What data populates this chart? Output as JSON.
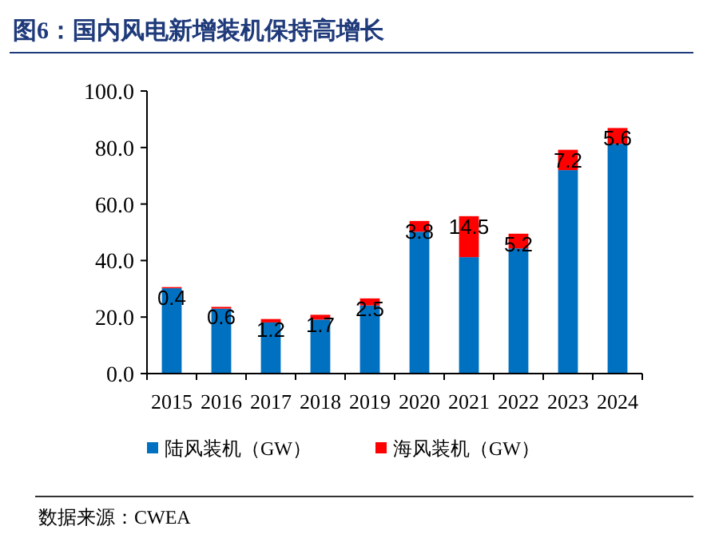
{
  "chart_data": {
    "type": "bar",
    "title": "图6：国内风电新增装机保持高增长",
    "stacked": true,
    "categories": [
      "2015",
      "2016",
      "2017",
      "2018",
      "2019",
      "2020",
      "2021",
      "2022",
      "2023",
      "2024"
    ],
    "series": [
      {
        "name": "陆风装机（GW）",
        "color": "#0070c0",
        "values": [
          30.2,
          23.0,
          18.1,
          19.1,
          24.1,
          50.2,
          41.2,
          44.3,
          72.0,
          81.3
        ]
      },
      {
        "name": "海风装机（GW）",
        "color": "#ff0000",
        "values": [
          0.4,
          0.6,
          1.2,
          1.7,
          2.5,
          3.8,
          14.5,
          5.2,
          7.2,
          5.6
        ],
        "value_labels": [
          "0.4",
          "0.6",
          "1.2",
          "1.7",
          "2.5",
          "3.8",
          "14.5",
          "5.2",
          "7.2",
          "5.6"
        ]
      }
    ],
    "ylim": [
      0,
      100
    ],
    "yticks": [
      {
        "value": 0,
        "label": "0.0"
      },
      {
        "value": 20,
        "label": "20.0"
      },
      {
        "value": 40,
        "label": "40.0"
      },
      {
        "value": 60,
        "label": "60.0"
      },
      {
        "value": 80,
        "label": "80.0"
      },
      {
        "value": 100,
        "label": "100.0"
      }
    ],
    "grid": false,
    "legend": "bottom",
    "annotations": [
      "数据来源：CWEA"
    ]
  }
}
